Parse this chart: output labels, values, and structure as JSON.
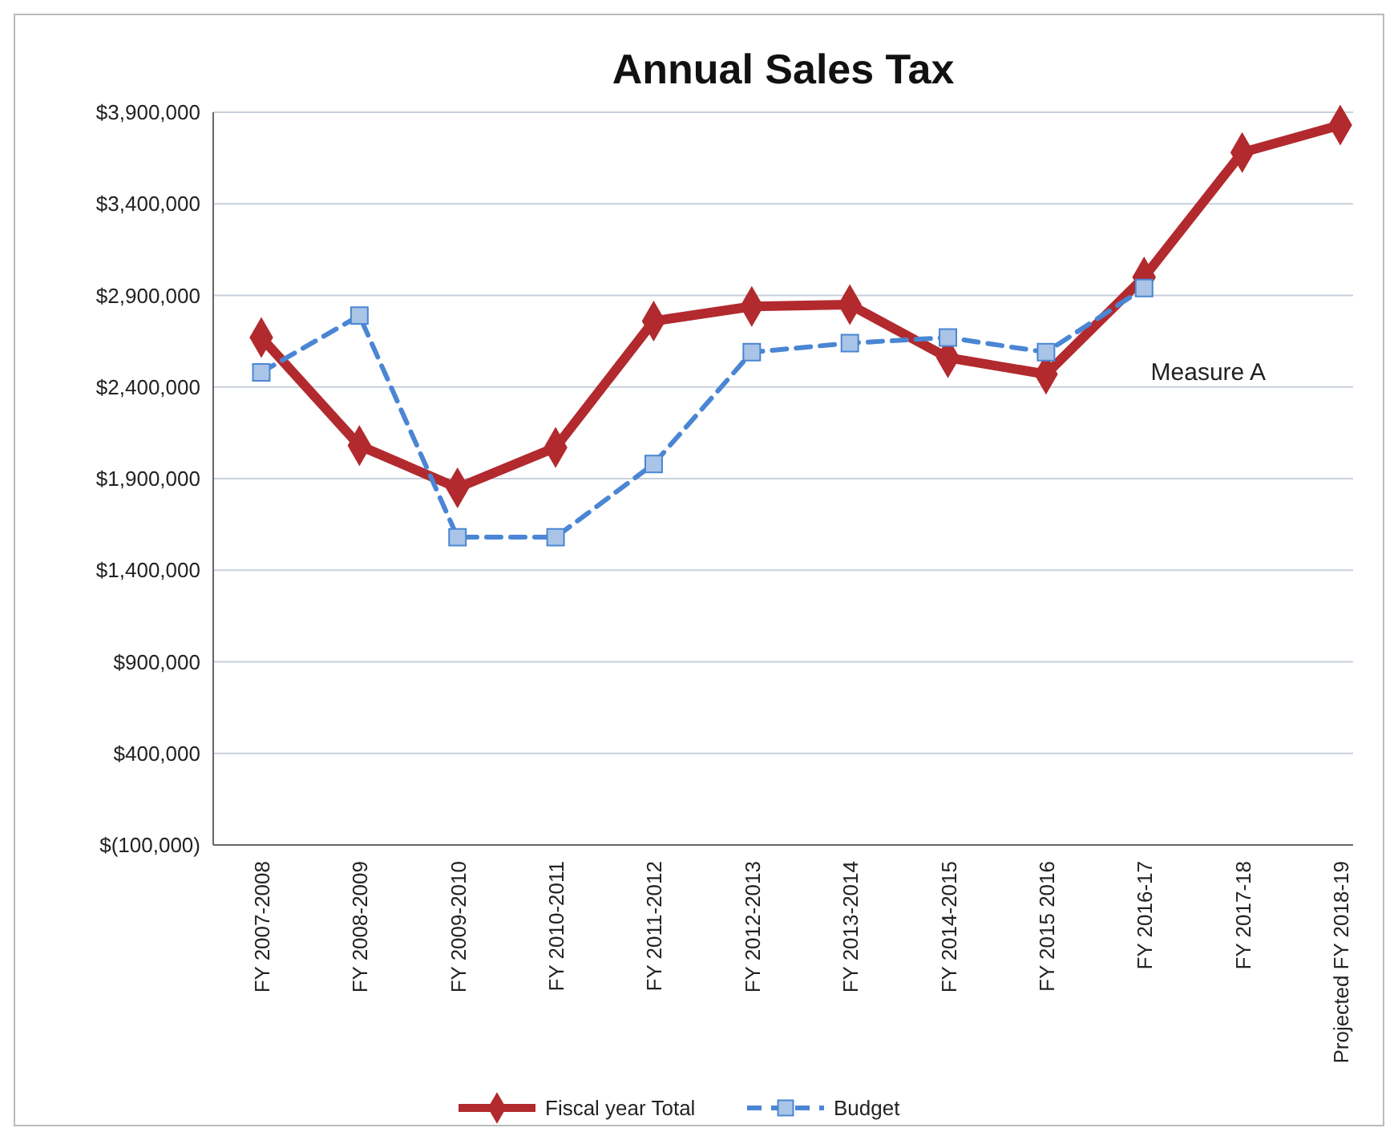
{
  "chart_data": {
    "type": "line",
    "title": "Annual  Sales Tax",
    "categories": [
      "FY 2007-2008",
      "FY 2008-2009",
      "FY 2009-2010",
      "FY 2010-2011",
      "FY 2011-2012",
      "FY 2012-2013",
      "FY 2013-2014",
      "FY 2014-2015",
      "FY 2015 2016",
      "FY 2016-17",
      "FY 2017-18",
      "Projected FY 2018-19"
    ],
    "series": [
      {
        "name": "Fiscal year Total",
        "color": "#b22a2e",
        "marker": "diamond",
        "line_style": "solid",
        "values": [
          2670000,
          2080000,
          1850000,
          2070000,
          2760000,
          2840000,
          2850000,
          2560000,
          2470000,
          3000000,
          3680000,
          3830000
        ]
      },
      {
        "name": "Budget",
        "color": "#4a86d4",
        "marker": "square",
        "line_style": "dashed",
        "values": [
          2480000,
          2790000,
          1580000,
          1580000,
          1980000,
          2590000,
          2640000,
          2670000,
          2590000,
          2940000,
          null,
          null
        ]
      }
    ],
    "ylim": [
      -100000,
      3900000
    ],
    "yticks": [
      {
        "value": -100000,
        "label": "$(100,000)"
      },
      {
        "value": 400000,
        "label": "$400,000"
      },
      {
        "value": 900000,
        "label": "$900,000"
      },
      {
        "value": 1400000,
        "label": "$1,400,000"
      },
      {
        "value": 1900000,
        "label": "$1,900,000"
      },
      {
        "value": 2400000,
        "label": "$2,400,000"
      },
      {
        "value": 2900000,
        "label": "$2,900,000"
      },
      {
        "value": 3400000,
        "label": "$3,400,000"
      },
      {
        "value": 3900000,
        "label": "$3,900,000"
      }
    ],
    "grid": "y",
    "legend": "bottom",
    "annotations": [
      "Measure A"
    ]
  }
}
